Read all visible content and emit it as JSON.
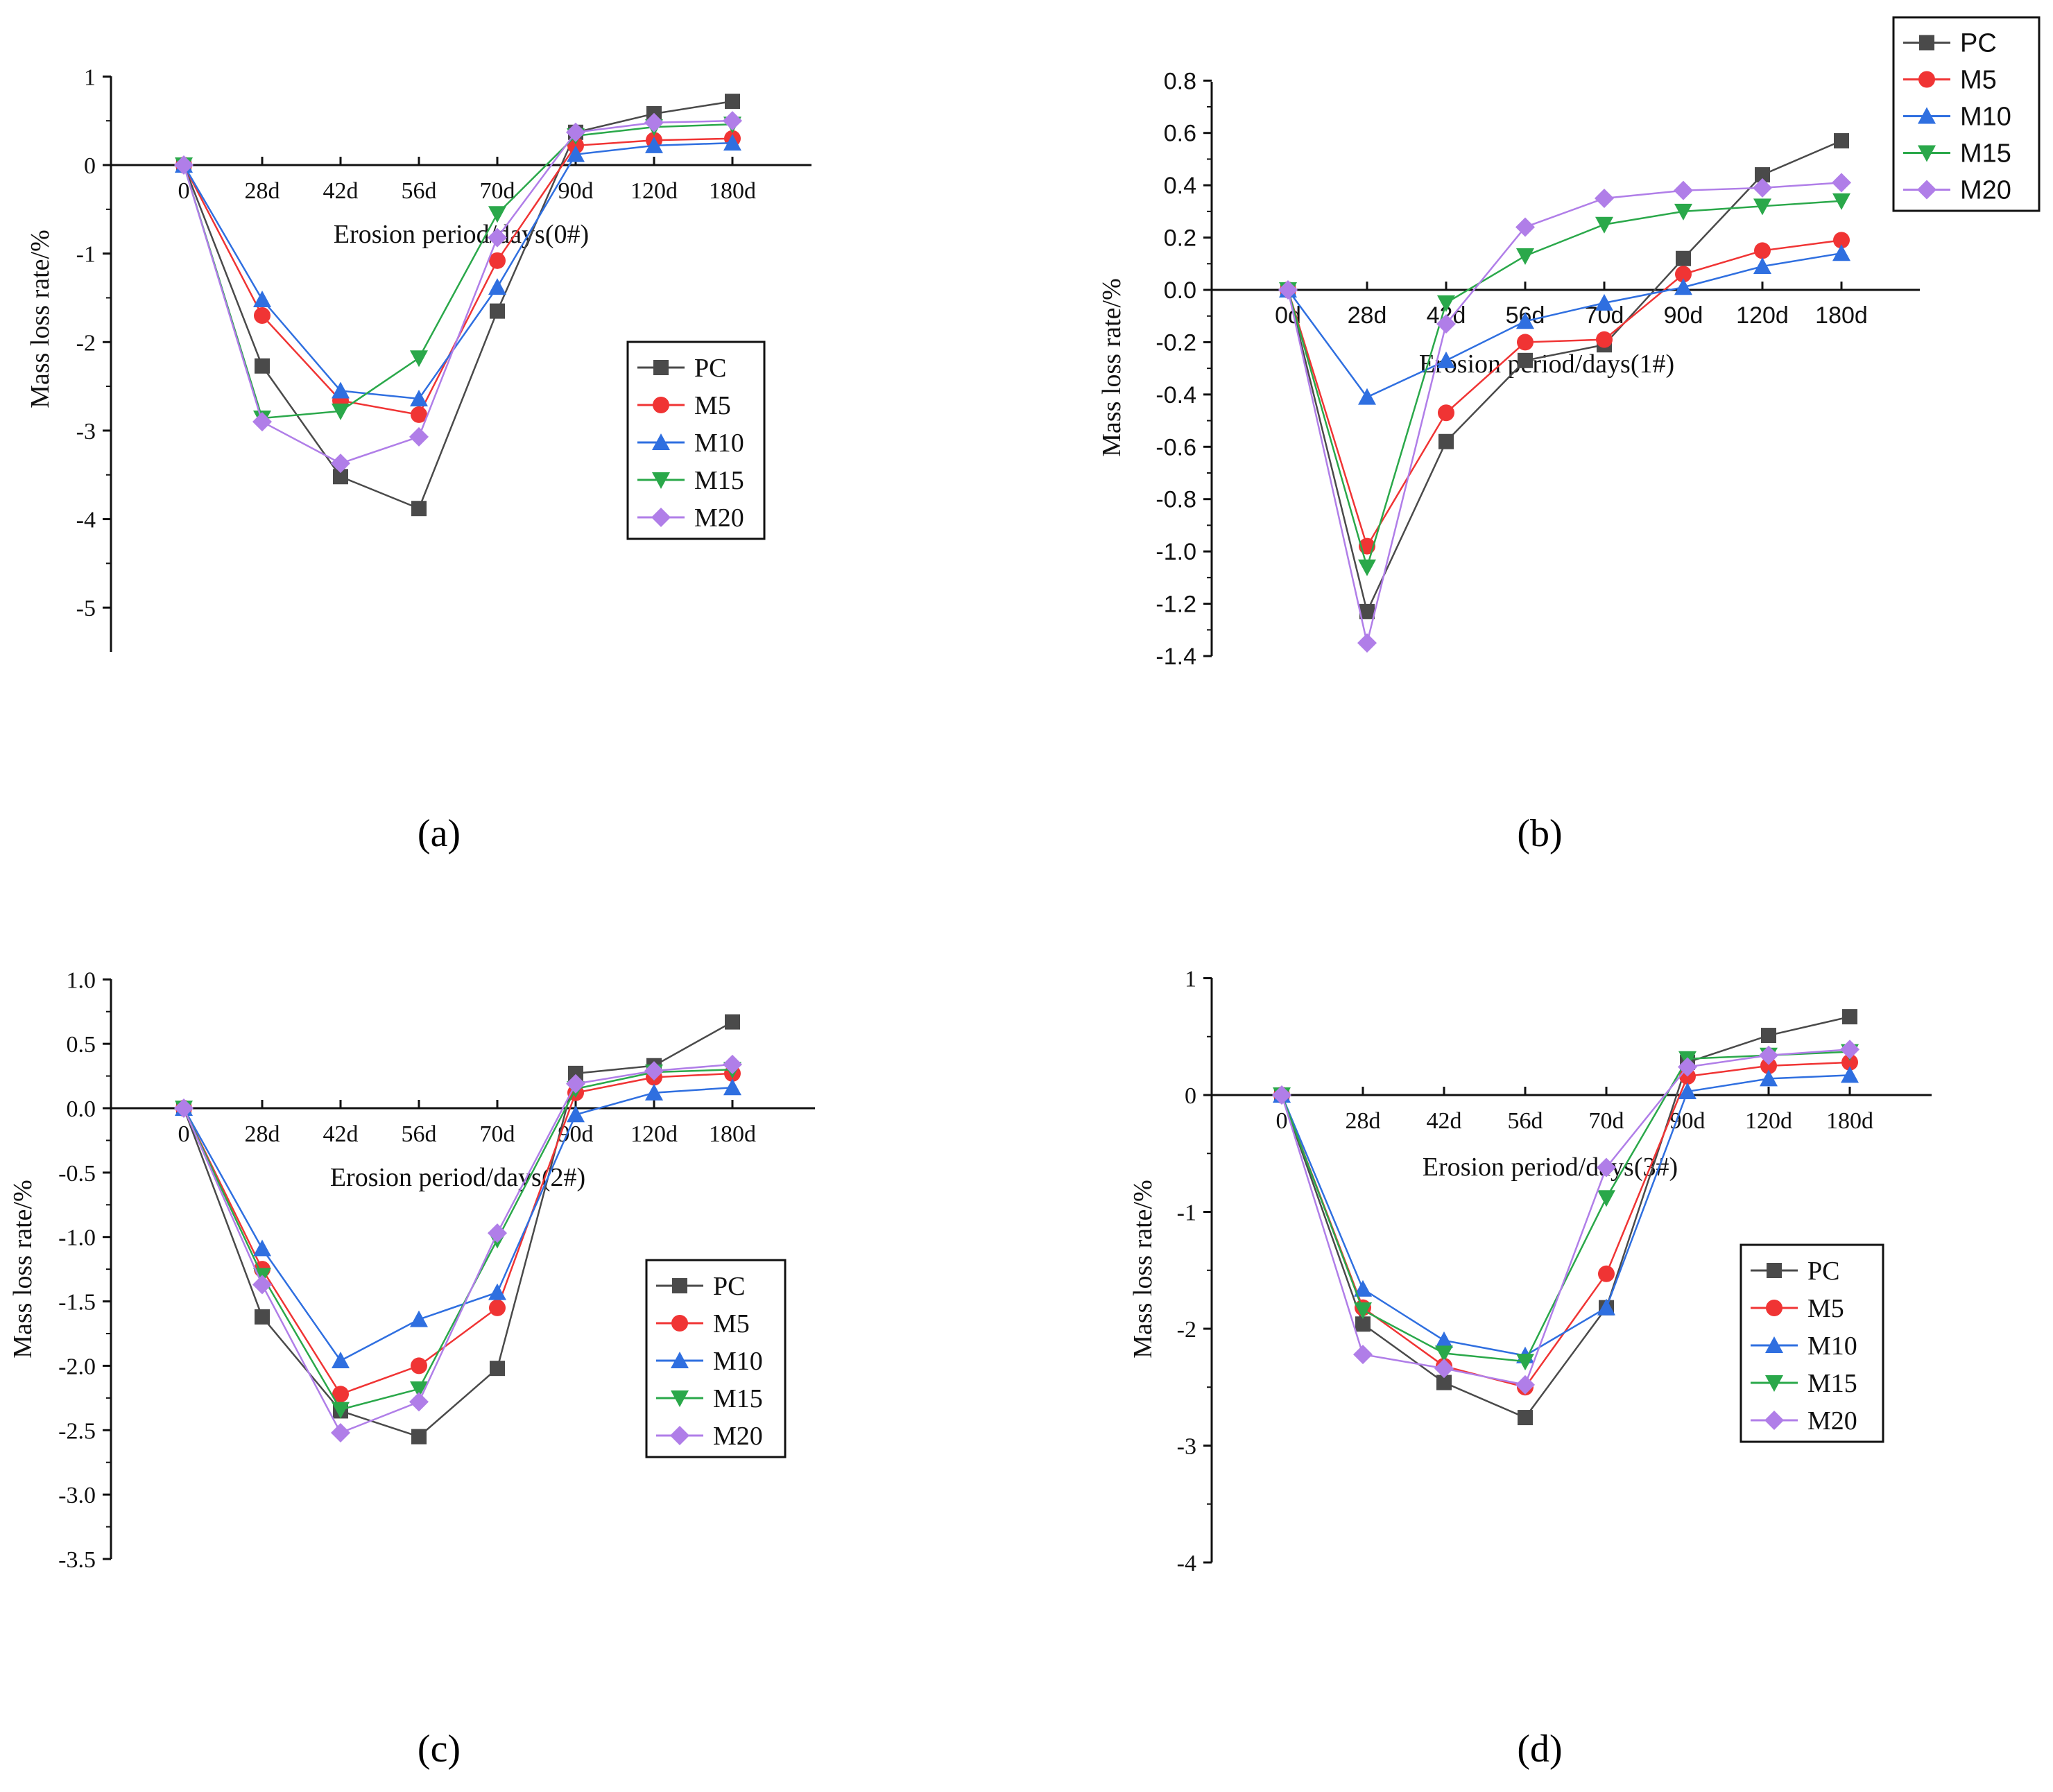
{
  "figure": {
    "series_colors": {
      "PC": "#4a4a4a",
      "M5": "#f03434",
      "M10": "#2f6fe0",
      "M15": "#2aa84a",
      "M20": "#b07ee8"
    },
    "panel_labels": [
      "(a)",
      "(b)",
      "(c)",
      "(d)"
    ]
  },
  "chart_data": [
    {
      "type": "line",
      "panel": "(a)",
      "title": "",
      "xlabel": "Erosion period/days(0#)",
      "ylabel": "Mass loss rate/%",
      "categories": [
        "0",
        "28d",
        "42d",
        "56d",
        "70d",
        "90d",
        "120d",
        "180d"
      ],
      "yticks": [
        "1",
        "0",
        "-1",
        "-2",
        "-3",
        "-4",
        "-5"
      ],
      "ylim": [
        -5.5,
        1
      ],
      "legend_position": "center-right",
      "series": [
        {
          "name": "PC",
          "values": [
            0,
            -2.27,
            -3.52,
            -3.88,
            -1.65,
            0.37,
            0.58,
            0.72
          ]
        },
        {
          "name": "M5",
          "values": [
            0,
            -1.7,
            -2.66,
            -2.82,
            -1.08,
            0.22,
            0.28,
            0.3
          ]
        },
        {
          "name": "M10",
          "values": [
            0,
            -1.52,
            -2.55,
            -2.64,
            -1.38,
            0.12,
            0.22,
            0.25
          ]
        },
        {
          "name": "M15",
          "values": [
            0,
            -2.86,
            -2.78,
            -2.18,
            -0.55,
            0.33,
            0.43,
            0.46
          ]
        },
        {
          "name": "M20",
          "values": [
            0,
            -2.9,
            -3.37,
            -3.07,
            -0.82,
            0.37,
            0.48,
            0.5
          ]
        }
      ]
    },
    {
      "type": "line",
      "panel": "(b)",
      "title": "",
      "xlabel": "Erosion period/days(1#)",
      "ylabel": "Mass loss rate/%",
      "categories": [
        "0d",
        "28d",
        "42d",
        "56d",
        "70d",
        "90d",
        "120d",
        "180d"
      ],
      "yticks": [
        "0.8",
        "0.6",
        "0.4",
        "0.2",
        "0.0",
        "-0.2",
        "-0.4",
        "-0.6",
        "-0.8",
        "-1.0",
        "-1.2",
        "-1.4"
      ],
      "ylim": [
        -1.4,
        0.8
      ],
      "legend_position": "top-right",
      "series": [
        {
          "name": "PC",
          "values": [
            0,
            -1.23,
            -0.58,
            -0.27,
            -0.21,
            0.12,
            0.44,
            0.57
          ]
        },
        {
          "name": "M5",
          "values": [
            0,
            -0.98,
            -0.47,
            -0.2,
            -0.19,
            0.06,
            0.15,
            0.19
          ]
        },
        {
          "name": "M10",
          "values": [
            0,
            -0.41,
            -0.27,
            -0.12,
            -0.05,
            0.01,
            0.09,
            0.14
          ]
        },
        {
          "name": "M15",
          "values": [
            0,
            -1.06,
            -0.05,
            0.13,
            0.25,
            0.3,
            0.32,
            0.34
          ]
        },
        {
          "name": "M20",
          "values": [
            0,
            -1.35,
            -0.13,
            0.24,
            0.35,
            0.38,
            0.39,
            0.41
          ]
        }
      ]
    },
    {
      "type": "line",
      "panel": "(c)",
      "title": "",
      "xlabel": "Erosion period/days(2#)",
      "ylabel": "Mass loss rate/%",
      "categories": [
        "0",
        "28d",
        "42d",
        "56d",
        "70d",
        "90d",
        "120d",
        "180d"
      ],
      "yticks": [
        "1.0",
        "0.5",
        "0.0",
        "-0.5",
        "-1.0",
        "-1.5",
        "-2.0",
        "-2.5",
        "-3.0",
        "-3.5"
      ],
      "ylim": [
        -3.5,
        1.0
      ],
      "legend_position": "center-right",
      "series": [
        {
          "name": "PC",
          "values": [
            0,
            -1.62,
            -2.35,
            -2.55,
            -2.02,
            0.27,
            0.33,
            0.67
          ]
        },
        {
          "name": "M5",
          "values": [
            0,
            -1.25,
            -2.22,
            -2.0,
            -1.55,
            0.12,
            0.24,
            0.27
          ]
        },
        {
          "name": "M10",
          "values": [
            0,
            -1.09,
            -1.96,
            -1.64,
            -1.43,
            -0.05,
            0.12,
            0.16
          ]
        },
        {
          "name": "M15",
          "values": [
            0,
            -1.3,
            -2.34,
            -2.18,
            -1.02,
            0.15,
            0.28,
            0.3
          ]
        },
        {
          "name": "M20",
          "values": [
            0,
            -1.37,
            -2.52,
            -2.28,
            -0.97,
            0.19,
            0.29,
            0.34
          ]
        }
      ]
    },
    {
      "type": "line",
      "panel": "(d)",
      "title": "",
      "xlabel": "Erosion period/days(3#)",
      "ylabel": "Mass loss rate/%",
      "categories": [
        "0",
        "28d",
        "42d",
        "56d",
        "70d",
        "90d",
        "120d",
        "180d"
      ],
      "yticks": [
        "1",
        "0",
        "-1",
        "-2",
        "-3",
        "-4"
      ],
      "ylim": [
        -4,
        1
      ],
      "legend_position": "center-right",
      "series": [
        {
          "name": "PC",
          "values": [
            0,
            -1.96,
            -2.46,
            -2.76,
            -1.82,
            0.28,
            0.51,
            0.67
          ]
        },
        {
          "name": "M5",
          "values": [
            0,
            -1.82,
            -2.32,
            -2.5,
            -1.53,
            0.16,
            0.25,
            0.28
          ]
        },
        {
          "name": "M10",
          "values": [
            0,
            -1.66,
            -2.1,
            -2.23,
            -1.82,
            0.03,
            0.14,
            0.17
          ]
        },
        {
          "name": "M15",
          "values": [
            0,
            -1.84,
            -2.21,
            -2.28,
            -0.88,
            0.31,
            0.34,
            0.37
          ]
        },
        {
          "name": "M20",
          "values": [
            0,
            -2.22,
            -2.34,
            -2.48,
            -0.62,
            0.24,
            0.34,
            0.39
          ]
        }
      ]
    }
  ]
}
